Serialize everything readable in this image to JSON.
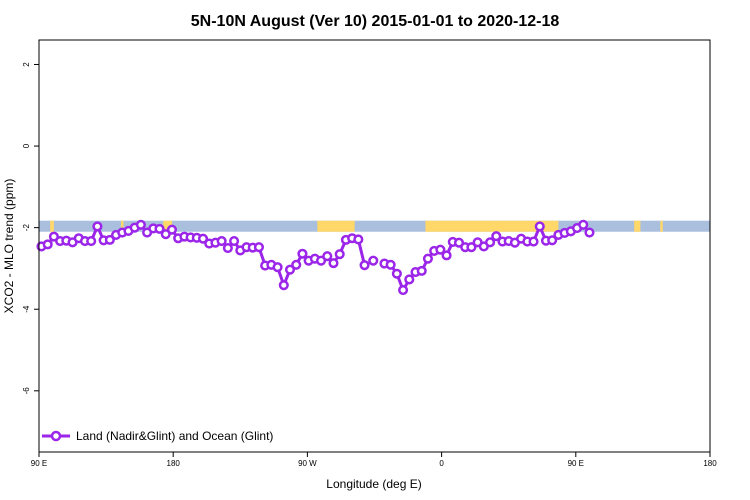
{
  "chart_data": {
    "type": "line",
    "title": "5N-10N August (Ver 10)   2015-01-01 to 2020-12-18",
    "xlabel": "Longitude (deg E)",
    "ylabel": "XCO2 - MLO trend (ppm)",
    "xlim": [
      -90,
      180
    ],
    "ylim": [
      -7.5,
      2.6
    ],
    "x_ticks": [
      {
        "value": -90,
        "label": "90 E"
      },
      {
        "value": -36,
        "label": "180"
      },
      {
        "value": 18,
        "label": "90 W"
      },
      {
        "value": 72,
        "label": "0"
      },
      {
        "value": 126,
        "label": "90 E"
      },
      {
        "value": 180,
        "label": "180"
      }
    ],
    "y_ticks": [
      {
        "value": 2,
        "label": "2"
      },
      {
        "value": 0,
        "label": "0"
      },
      {
        "value": -2,
        "label": "-2"
      },
      {
        "value": -4,
        "label": "-4"
      },
      {
        "value": -6,
        "label": "-6"
      }
    ],
    "band": {
      "y_range": [
        -2.1,
        -1.83
      ],
      "ocean_color": "#a9bfdd",
      "land_color": "#ffd869",
      "land_segments": [
        [
          -85.5,
          -84
        ],
        [
          -57,
          -56
        ],
        [
          -40,
          -36.5
        ],
        [
          22,
          37
        ],
        [
          65.5,
          119
        ],
        [
          149.5,
          152
        ],
        [
          160,
          161
        ]
      ]
    },
    "series": [
      {
        "name": "Land (Nadir&Glint) and Ocean (Glint)",
        "color": "#9b25e8",
        "segments": [
          [
            [
              -89,
              -2.46
            ],
            [
              -86.5,
              -2.41
            ],
            [
              -84,
              -2.22
            ],
            [
              -81.5,
              -2.33
            ],
            [
              -79,
              -2.32
            ],
            [
              -76.5,
              -2.36
            ],
            [
              -74,
              -2.26
            ],
            [
              -71.5,
              -2.33
            ],
            [
              -69,
              -2.33
            ],
            [
              -66.5,
              -1.97
            ],
            [
              -64,
              -2.31
            ],
            [
              -61.5,
              -2.3
            ],
            [
              -59,
              -2.18
            ],
            [
              -56.5,
              -2.12
            ],
            [
              -54,
              -2.08
            ],
            [
              -51.5,
              -2.0
            ],
            [
              -49,
              -1.93
            ],
            [
              -46.5,
              -2.12
            ],
            [
              -44,
              -2.02
            ],
            [
              -41.5,
              -2.03
            ],
            [
              -39,
              -2.16
            ],
            [
              -36.5,
              -2.05
            ],
            [
              -34,
              -2.26
            ],
            [
              -31.5,
              -2.22
            ],
            [
              -29,
              -2.24
            ],
            [
              -26.5,
              -2.25
            ],
            [
              -24,
              -2.27
            ],
            [
              -21.5,
              -2.39
            ],
            [
              -19,
              -2.37
            ],
            [
              -16.5,
              -2.33
            ],
            [
              -14,
              -2.5
            ],
            [
              -11.5,
              -2.33
            ],
            [
              -9,
              -2.56
            ],
            [
              -6.5,
              -2.48
            ],
            [
              -4,
              -2.49
            ],
            [
              -1.5,
              -2.48
            ],
            [
              1,
              -2.93
            ],
            [
              3.5,
              -2.91
            ],
            [
              6,
              -2.97
            ],
            [
              8.5,
              -3.41
            ],
            [
              11,
              -3.03
            ],
            [
              13.5,
              -2.91
            ],
            [
              16,
              -2.64
            ],
            [
              18.5,
              -2.81
            ],
            [
              21,
              -2.76
            ],
            [
              23.5,
              -2.81
            ],
            [
              26,
              -2.7
            ],
            [
              28.5,
              -2.87
            ],
            [
              31,
              -2.65
            ],
            [
              33.5,
              -2.3
            ],
            [
              36,
              -2.26
            ],
            [
              38.5,
              -2.29
            ],
            [
              41,
              -2.92
            ]
          ],
          [
            [
              44.5,
              -2.81
            ]
          ],
          [
            [
              49,
              -2.88
            ],
            [
              51.5,
              -2.91
            ],
            [
              54,
              -3.13
            ],
            [
              56.5,
              -3.53
            ],
            [
              59,
              -3.27
            ],
            [
              61.5,
              -3.09
            ],
            [
              64,
              -3.06
            ],
            [
              66.5,
              -2.76
            ],
            [
              69,
              -2.57
            ],
            [
              71.5,
              -2.54
            ],
            [
              74,
              -2.68
            ],
            [
              76.5,
              -2.35
            ],
            [
              79,
              -2.37
            ],
            [
              81.5,
              -2.48
            ],
            [
              84,
              -2.48
            ],
            [
              86.5,
              -2.36
            ],
            [
              89,
              -2.46
            ],
            [
              91.5,
              -2.36
            ],
            [
              94,
              -2.21
            ],
            [
              96.5,
              -2.34
            ],
            [
              99,
              -2.33
            ],
            [
              101.5,
              -2.37
            ],
            [
              104,
              -2.27
            ],
            [
              106.5,
              -2.34
            ],
            [
              109,
              -2.34
            ],
            [
              111.5,
              -1.97
            ],
            [
              114,
              -2.32
            ],
            [
              116.5,
              -2.31
            ],
            [
              119,
              -2.18
            ],
            [
              121.5,
              -2.13
            ],
            [
              124,
              -2.09
            ],
            [
              126.5,
              -2.01
            ],
            [
              129,
              -1.93
            ],
            [
              131.5,
              -2.12
            ]
          ]
        ]
      }
    ],
    "legend": {
      "position": "bottom-left",
      "label": "Land (Nadir&Glint) and Ocean (Glint)"
    }
  }
}
